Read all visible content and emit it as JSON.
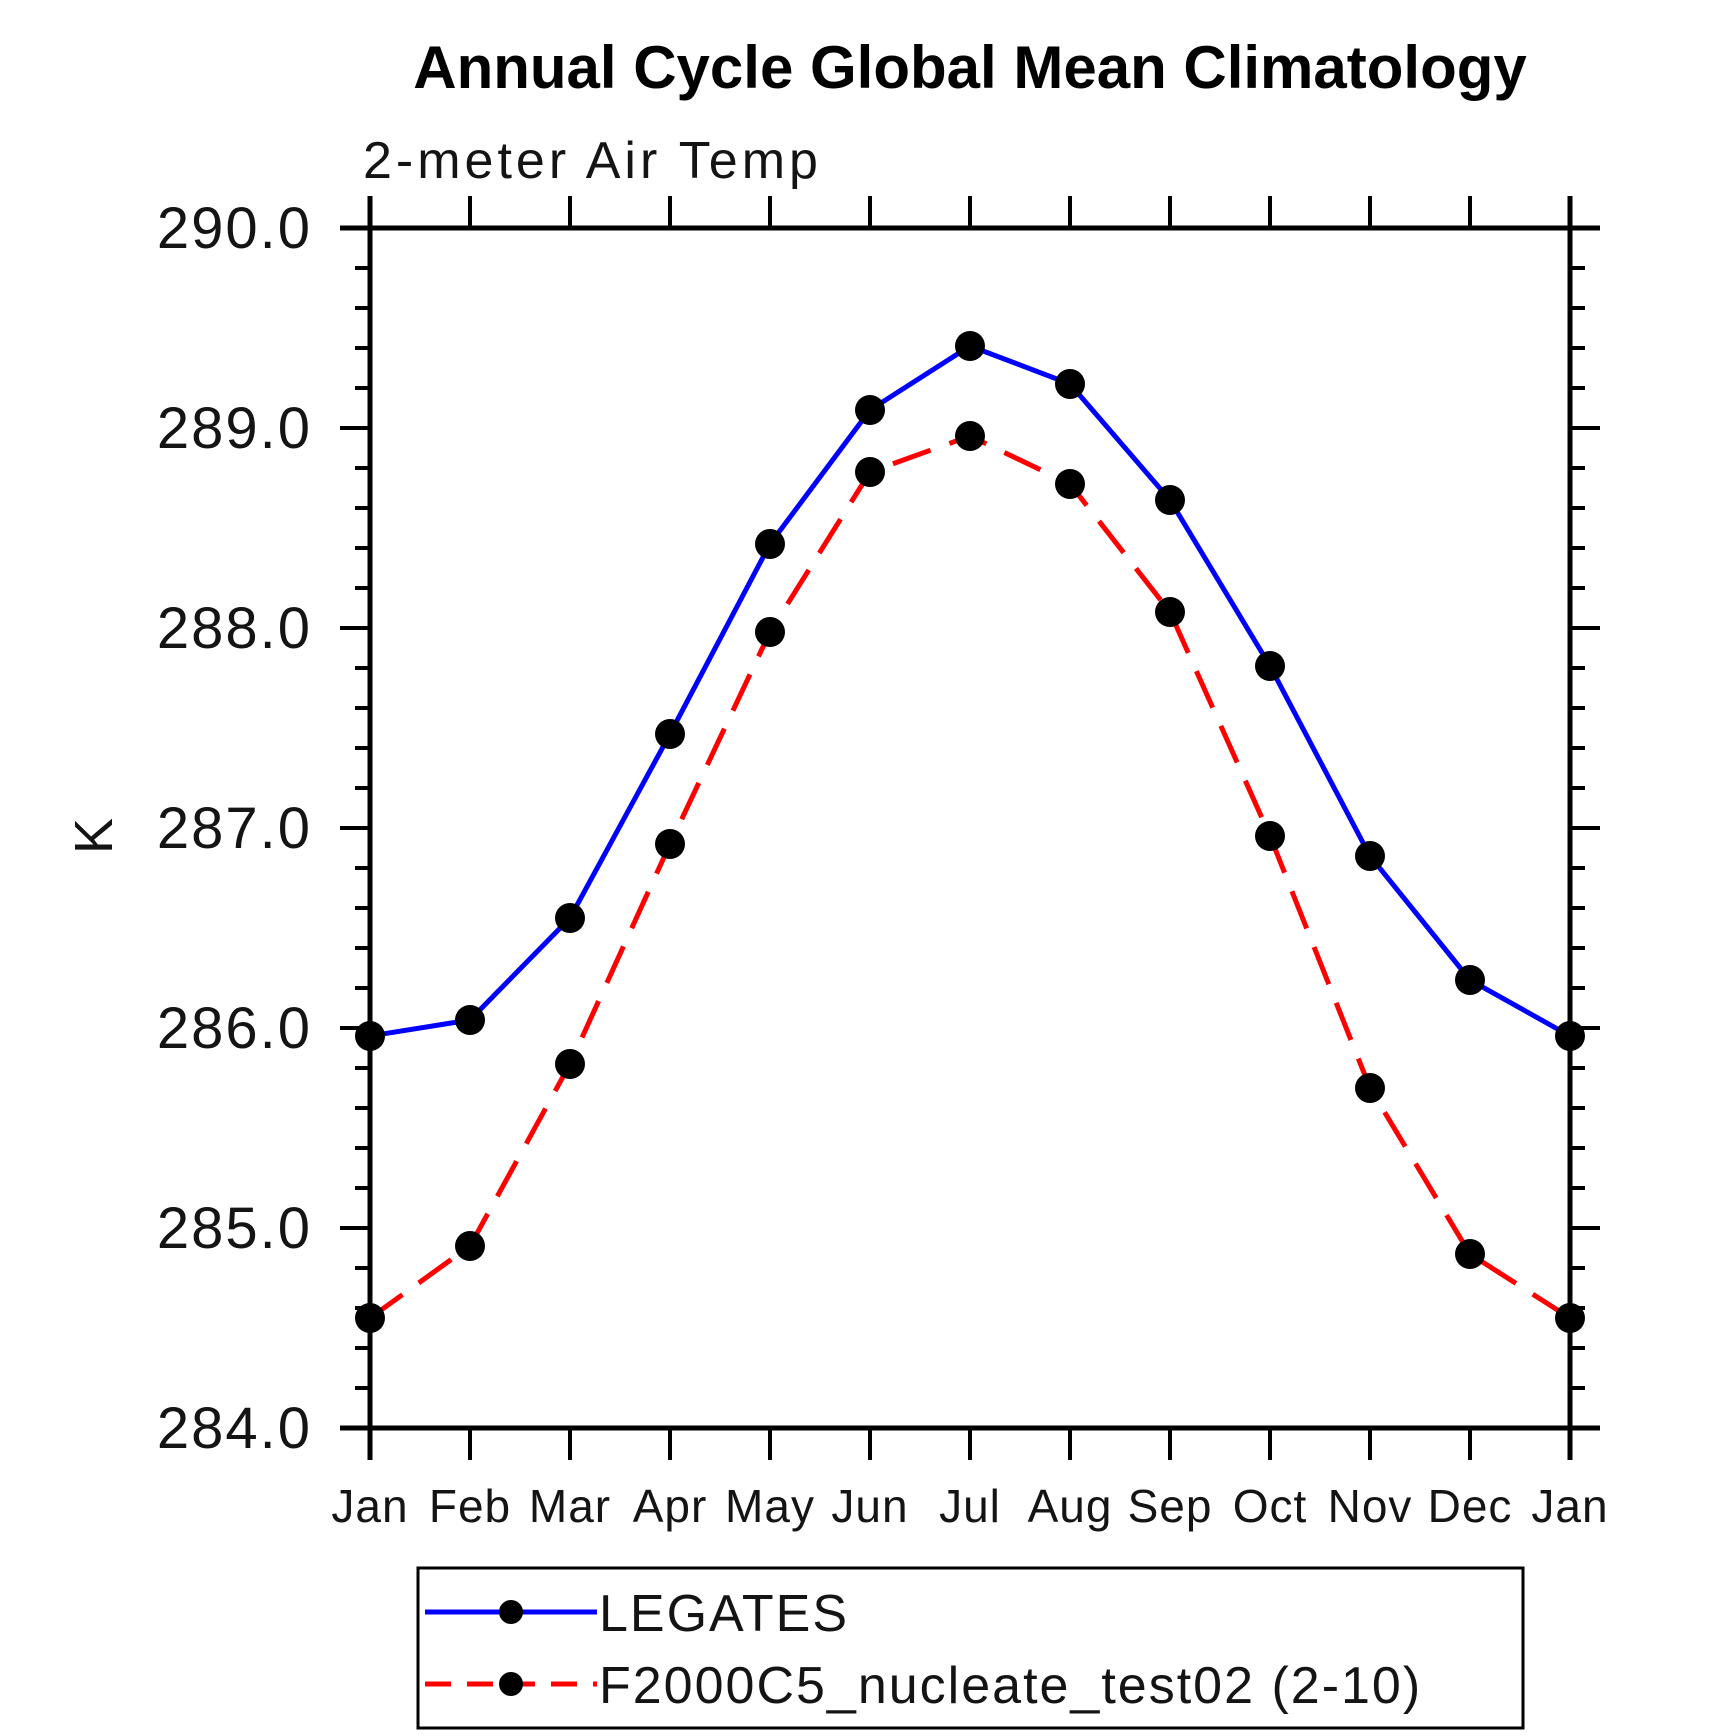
{
  "chart_data": {
    "type": "line",
    "title": "Annual Cycle Global Mean Climatology",
    "subtitle": "2-meter Air Temp",
    "ylabel": "K",
    "categories": [
      "Jan",
      "Feb",
      "Mar",
      "Apr",
      "May",
      "Jun",
      "Jul",
      "Aug",
      "Sep",
      "Oct",
      "Nov",
      "Dec",
      "Jan"
    ],
    "ylim": [
      284.0,
      290.0
    ],
    "ytick_step": 1.0,
    "yminor_step": 0.2,
    "ytick_labels": [
      "284.0",
      "285.0",
      "286.0",
      "287.0",
      "288.0",
      "289.0",
      "290.0"
    ],
    "grid": "off",
    "legend_position": "bottom",
    "series": [
      {
        "name": "LEGATES",
        "color": "#0000ff",
        "line_style": "solid",
        "marker": "circle",
        "marker_color": "#000000",
        "values": [
          285.96,
          286.04,
          286.55,
          287.47,
          288.42,
          289.09,
          289.41,
          289.22,
          288.64,
          287.81,
          286.86,
          286.24,
          285.96
        ]
      },
      {
        "name": "F2000C5_nucleate_test02 (2-10)",
        "color": "#ff0000",
        "line_style": "dashed",
        "marker": "circle",
        "marker_color": "#000000",
        "values": [
          284.55,
          284.91,
          285.82,
          286.92,
          287.98,
          288.78,
          288.96,
          288.72,
          288.08,
          286.96,
          285.7,
          284.87,
          284.55
        ]
      }
    ]
  }
}
